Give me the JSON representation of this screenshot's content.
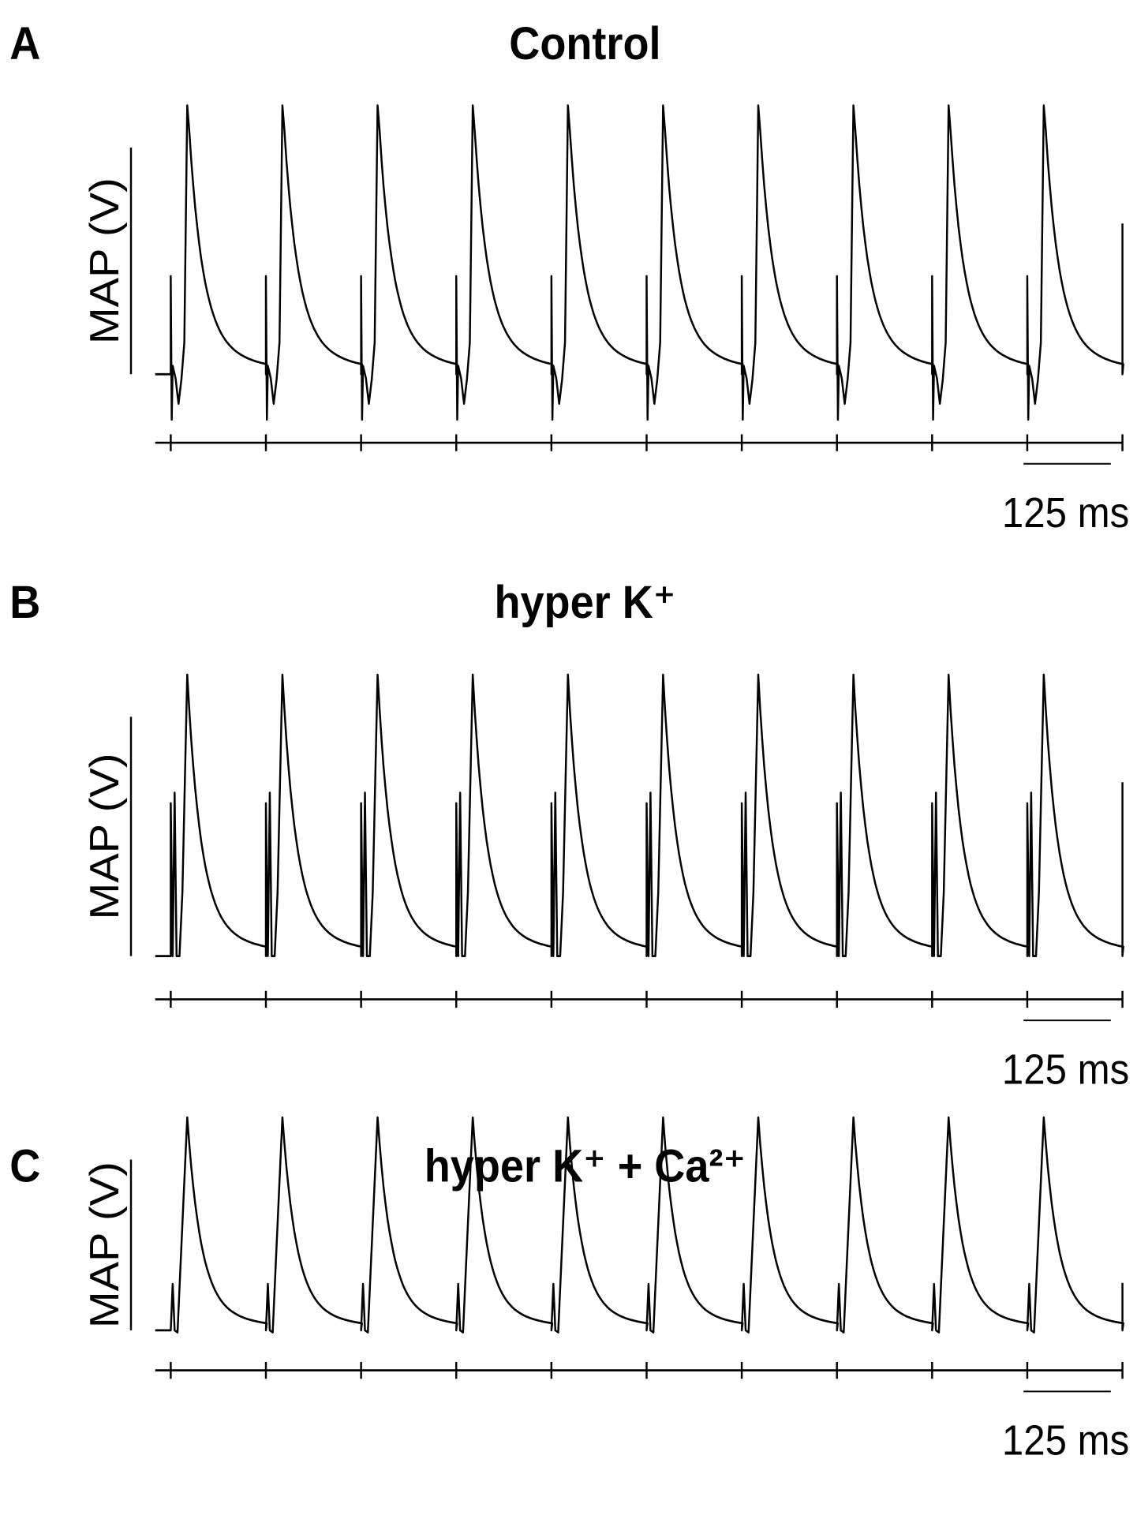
{
  "panels": [
    {
      "label": "A",
      "title": "Control",
      "ylabel": "MAP (V)",
      "scale_label": "125 ms"
    },
    {
      "label": "B",
      "title": "hyper K⁺",
      "ylabel": "MAP (V)",
      "scale_label": "125 ms"
    },
    {
      "label": "C",
      "title": "hyper K⁺ + Ca²⁺",
      "ylabel": "MAP (V)",
      "scale_label": "125 ms"
    }
  ]
}
